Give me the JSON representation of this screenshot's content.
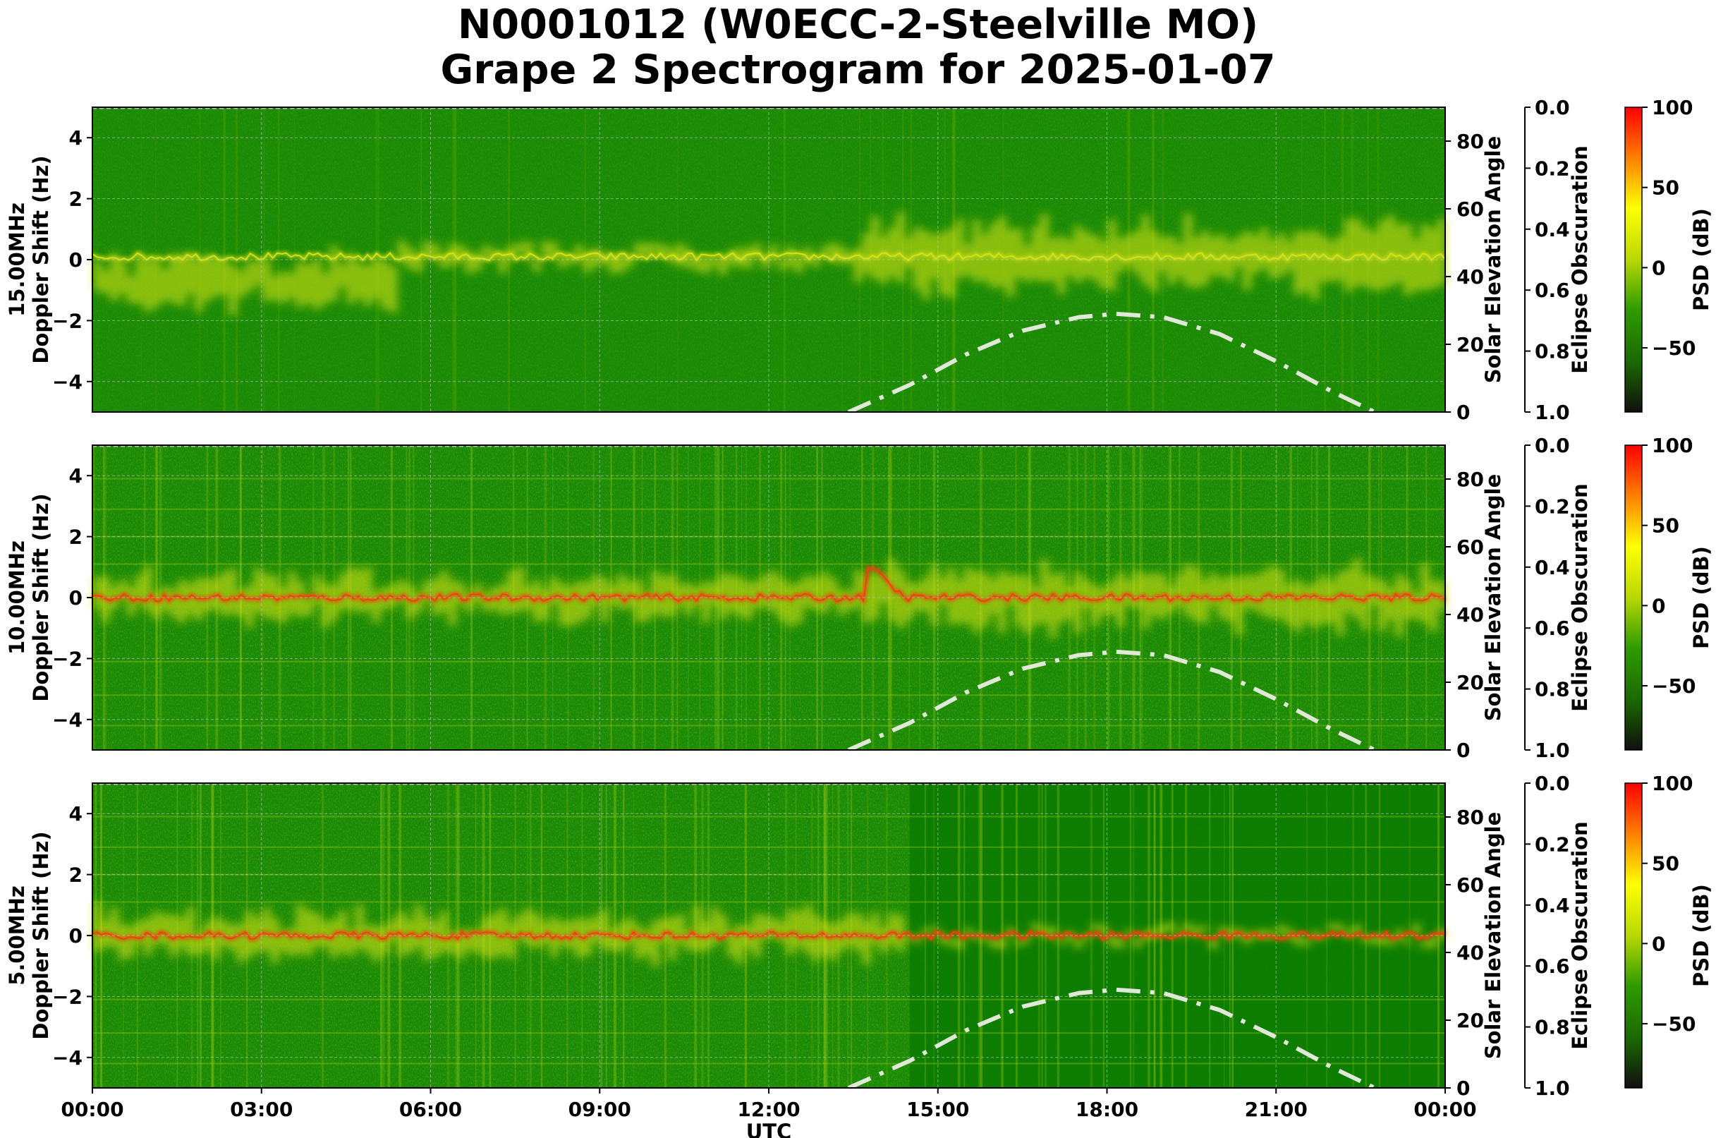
{
  "title_line1": "N0001012 (W0ECC-2-Steelville MO)",
  "title_line2": "Grape 2 Spectrogram for 2025-01-07",
  "chart_data": [
    {
      "type": "heatmap",
      "band": "15.00MHz",
      "ylabel": "15.00MHz\nDoppler Shift (Hz)",
      "ylim": [
        -5,
        5
      ],
      "yticks": [
        "−4",
        "−2",
        "0",
        "2",
        "4"
      ],
      "y2label": "Solar Elevation Angle",
      "y2lim": [
        0,
        90
      ],
      "y2ticks": [
        "0",
        "20",
        "40",
        "60",
        "80"
      ],
      "y3label": "Eclipse Obscuration",
      "y3ticks": [
        "0.0",
        "0.2",
        "0.4",
        "0.6",
        "0.8",
        "1.0"
      ],
      "colorbar_label": "PSD (dB)",
      "colorbar_ticks": [
        "100",
        "50",
        "0",
        "−50"
      ],
      "carrier_hz": 0.1,
      "activity": "weak spread at night, strong diffuse spread after 13:30 UTC",
      "solar_elevation_max_deg": 29,
      "solar_elevation_peak_utc": "18:10"
    },
    {
      "type": "heatmap",
      "band": "10.00MHz",
      "ylabel": "10.00MHz\nDoppler Shift (Hz)",
      "ylim": [
        -5,
        5
      ],
      "yticks": [
        "−4",
        "−2",
        "0",
        "2",
        "4"
      ],
      "y2label": "Solar Elevation Angle",
      "y2lim": [
        0,
        90
      ],
      "y2ticks": [
        "0",
        "20",
        "40",
        "60",
        "80"
      ],
      "y3label": "Eclipse Obscuration",
      "y3ticks": [
        "0.0",
        "0.2",
        "0.4",
        "0.6",
        "0.8",
        "1.0"
      ],
      "colorbar_label": "PSD (dB)",
      "colorbar_ticks": [
        "100",
        "50",
        "0",
        "−50"
      ],
      "carrier_hz": 0.0,
      "activity": "strong carrier all day with spread, strongest after 13:30 UTC",
      "solar_elevation_max_deg": 29,
      "solar_elevation_peak_utc": "18:10"
    },
    {
      "type": "heatmap",
      "band": "5.00MHz",
      "ylabel": "5.00MHz\nDoppler Shift (Hz)",
      "ylim": [
        -5,
        5
      ],
      "yticks": [
        "−4",
        "−2",
        "0",
        "2",
        "4"
      ],
      "y2label": "Solar Elevation Angle",
      "y2lim": [
        0,
        90
      ],
      "y2ticks": [
        "0",
        "20",
        "40",
        "60",
        "80"
      ],
      "y3label": "Eclipse Obscuration",
      "y3ticks": [
        "0.0",
        "0.2",
        "0.4",
        "0.6",
        "0.8",
        "1.0"
      ],
      "colorbar_label": "PSD (dB)",
      "colorbar_ticks": [
        "100",
        "50",
        "0",
        "−50"
      ],
      "carrier_hz": 0.0,
      "activity": "strong carrier 00:00-14:30 UTC, quiet daytime",
      "solar_elevation_max_deg": 29,
      "solar_elevation_peak_utc": "18:10"
    }
  ],
  "xaxis": {
    "label": "UTC",
    "ticks": [
      "00:00",
      "03:00",
      "06:00",
      "09:00",
      "12:00",
      "15:00",
      "18:00",
      "21:00",
      "00:00"
    ]
  },
  "colors": {
    "background_green": "#1a8a05",
    "quiet_green": "#0b7a00",
    "spread_yellow": "#d6e21a",
    "carrier_red": "#f04010",
    "solar_curve": "#e0e8d8",
    "colorbar_stops": [
      "#101010",
      "#1b6a00",
      "#2e9a00",
      "#b8d800",
      "#ffff00",
      "#ff8000",
      "#ff0000"
    ]
  },
  "solar_curve_samples": [
    {
      "utc": "13:25",
      "deg": 0
    },
    {
      "utc": "14:30",
      "deg": 8
    },
    {
      "utc": "15:30",
      "deg": 17
    },
    {
      "utc": "16:30",
      "deg": 24
    },
    {
      "utc": "17:30",
      "deg": 28
    },
    {
      "utc": "18:10",
      "deg": 29
    },
    {
      "utc": "19:00",
      "deg": 28
    },
    {
      "utc": "20:00",
      "deg": 23
    },
    {
      "utc": "21:00",
      "deg": 15
    },
    {
      "utc": "22:00",
      "deg": 6
    },
    {
      "utc": "22:45",
      "deg": 0
    }
  ]
}
